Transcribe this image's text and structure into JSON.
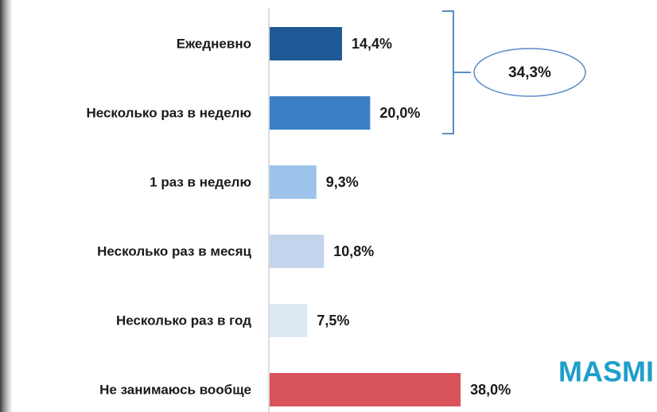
{
  "chart_data": {
    "type": "bar",
    "orientation": "horizontal",
    "categories": [
      "Ежедневно",
      "Несколько раз в неделю",
      "1 раз в неделю",
      "Несколько раз в месяц",
      "Несколько раз в год",
      "Не занимаюсь вообще"
    ],
    "values": [
      14.4,
      20.0,
      9.3,
      10.8,
      7.5,
      38.0
    ],
    "value_labels": [
      "14,4%",
      "20,0%",
      "9,3%",
      "10,8%",
      "7,5%",
      "38,0%"
    ],
    "colors": [
      "#1f5a96",
      "#3b7fc7",
      "#9dc3ea",
      "#c3d5ec",
      "#dde8f3",
      "#d8545a"
    ],
    "annotation": "34,3%"
  },
  "logo": "MASMI"
}
